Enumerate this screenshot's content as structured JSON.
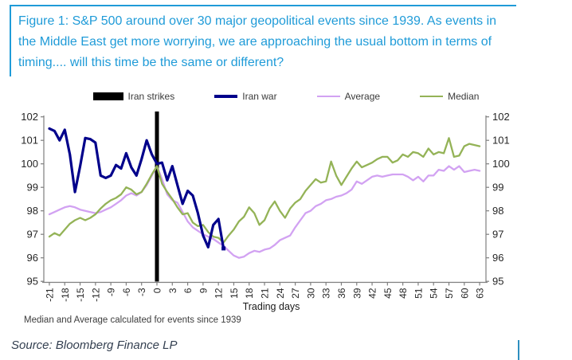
{
  "figure": {
    "title": "Figure 1: S&P 500 around over 30 major geopolitical events since 1939. As events in the Middle East get more worrying, we are approaching the usual bottom in terms of timing.... will this time be the same or different?",
    "footnote": "Median and Average calculated for events since 1939",
    "source": "Source: Bloomberg Finance LP",
    "accent_color": "#1f9bd8"
  },
  "legend": [
    {
      "label": "Iran strikes",
      "color": "#000000",
      "swatch": "bar"
    },
    {
      "label": "Iran war",
      "color": "#00008b",
      "swatch": "line-thick"
    },
    {
      "label": "Average",
      "color": "#d2a2f2",
      "swatch": "line"
    },
    {
      "label": "Median",
      "color": "#94b357",
      "swatch": "line"
    }
  ],
  "chart_data": {
    "type": "line",
    "title": "",
    "xlabel": "Trading days",
    "ylabel": "",
    "ylim": [
      95,
      102
    ],
    "yticks": [
      95,
      96,
      97,
      98,
      99,
      100,
      101,
      102
    ],
    "xticks": [
      -21,
      -18,
      -15,
      -12,
      -9,
      -6,
      -3,
      0,
      3,
      6,
      9,
      12,
      15,
      18,
      21,
      24,
      27,
      30,
      33,
      36,
      39,
      42,
      45,
      48,
      51,
      54,
      57,
      60,
      63
    ],
    "x_range": [
      -21,
      63
    ],
    "grid": false,
    "legend_position": "top",
    "event_marker": {
      "label": "Iran strikes",
      "day": 0,
      "color": "#000000"
    },
    "series": [
      {
        "name": "Iran war",
        "color": "#00008b",
        "width": 3.2,
        "z": 3,
        "start_day": -21,
        "end_dot": true,
        "values": [
          101.5,
          101.4,
          101.0,
          101.45,
          100.4,
          98.8,
          99.9,
          101.1,
          101.05,
          100.9,
          99.5,
          99.4,
          99.5,
          99.95,
          99.8,
          100.45,
          99.85,
          99.5,
          100.2,
          101.0,
          100.4,
          100.0,
          100.05,
          99.3,
          99.9,
          99.1,
          98.3,
          98.85,
          98.65,
          97.9,
          96.95,
          96.45,
          97.4,
          97.65,
          96.4
        ]
      },
      {
        "name": "Average",
        "color": "#d2a2f2",
        "width": 2.3,
        "z": 1,
        "start_day": -21,
        "end_dot": false,
        "values": [
          97.85,
          97.95,
          98.05,
          98.15,
          98.2,
          98.15,
          98.05,
          98.0,
          97.95,
          97.9,
          97.95,
          98.05,
          98.15,
          98.3,
          98.45,
          98.65,
          98.75,
          98.65,
          98.8,
          99.1,
          99.5,
          99.9,
          99.35,
          98.7,
          98.45,
          98.35,
          97.95,
          97.55,
          97.3,
          97.15,
          97.0,
          96.9,
          96.8,
          96.65,
          96.5,
          96.3,
          96.1,
          96.0,
          96.05,
          96.2,
          96.3,
          96.25,
          96.35,
          96.4,
          96.55,
          96.75,
          96.85,
          96.95,
          97.3,
          97.6,
          97.9,
          98.0,
          98.2,
          98.3,
          98.45,
          98.5,
          98.6,
          98.65,
          98.75,
          98.9,
          99.25,
          99.15,
          99.3,
          99.45,
          99.5,
          99.45,
          99.5,
          99.55,
          99.55,
          99.55,
          99.45,
          99.3,
          99.45,
          99.25,
          99.5,
          99.5,
          99.75,
          99.7,
          99.9,
          99.75,
          99.9,
          99.65,
          99.7,
          99.75,
          99.7
        ]
      },
      {
        "name": "Median",
        "color": "#94b357",
        "width": 2.3,
        "z": 2,
        "start_day": -21,
        "end_dot": false,
        "values": [
          96.9,
          97.05,
          96.95,
          97.2,
          97.45,
          97.6,
          97.7,
          97.6,
          97.7,
          97.85,
          98.1,
          98.3,
          98.45,
          98.55,
          98.7,
          99.0,
          98.9,
          98.7,
          98.8,
          99.15,
          99.55,
          99.9,
          99.15,
          98.8,
          98.5,
          98.15,
          97.85,
          97.9,
          97.5,
          97.35,
          97.4,
          97.1,
          96.9,
          96.85,
          96.65,
          96.95,
          97.2,
          97.55,
          97.75,
          98.15,
          97.9,
          97.4,
          97.6,
          98.1,
          98.4,
          98.0,
          97.7,
          98.1,
          98.35,
          98.5,
          98.85,
          99.1,
          99.35,
          99.2,
          99.25,
          100.1,
          99.5,
          99.1,
          99.45,
          99.8,
          100.1,
          99.85,
          99.95,
          100.05,
          100.2,
          100.3,
          100.3,
          100.05,
          100.15,
          100.4,
          100.3,
          100.5,
          100.45,
          100.3,
          100.65,
          100.4,
          100.5,
          100.45,
          101.1,
          100.3,
          100.35,
          100.75,
          100.85,
          100.8,
          100.75
        ]
      }
    ]
  }
}
